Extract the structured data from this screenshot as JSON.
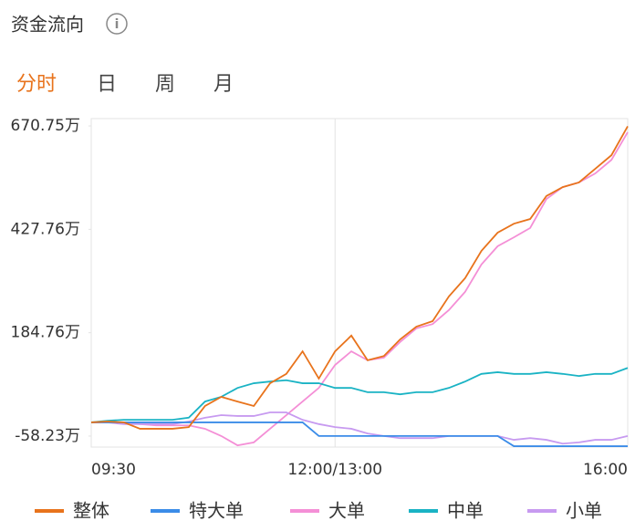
{
  "header": {
    "title": "资金流向",
    "tabs": [
      "分时",
      "日",
      "周",
      "月"
    ]
  },
  "chart_data": {
    "type": "line",
    "categories": [
      "09:30",
      null,
      null,
      null,
      null,
      null,
      null,
      null,
      null,
      null,
      null,
      null,
      null,
      null,
      null,
      "12:00/13:00",
      null,
      null,
      null,
      null,
      null,
      null,
      null,
      null,
      null,
      null,
      null,
      null,
      null,
      null,
      null,
      null,
      null,
      "16:00"
    ],
    "ylim": [
      -84,
      688
    ],
    "yticks": [
      {
        "value": 670.75,
        "label": "670.75万"
      },
      {
        "value": 427.76,
        "label": "427.76万"
      },
      {
        "value": 184.76,
        "label": "184.76万"
      },
      {
        "value": -58.23,
        "label": "-58.23万"
      }
    ],
    "grid": false,
    "series": [
      {
        "name": "整体",
        "color": "#e8731c",
        "values": [
          -26,
          -24,
          -26,
          -41,
          -41,
          -41,
          -37,
          12.5,
          34,
          23,
          12.5,
          66,
          88,
          141,
          77,
          141,
          178,
          120,
          130,
          169,
          199,
          212,
          270,
          313,
          377,
          420,
          441,
          452,
          506,
          527,
          538,
          570,
          602,
          670
        ]
      },
      {
        "name": "特大单",
        "color": "#3b8ce8",
        "values": [
          -26,
          -26,
          -26,
          -26,
          -26,
          -26,
          -26,
          -26,
          -26,
          -26,
          -26,
          -26,
          -26,
          -26,
          -58,
          -58,
          -58,
          -58,
          -58,
          -58,
          -58,
          -58,
          -58,
          -58,
          -58,
          -58,
          -82,
          -82,
          -82,
          -82,
          -82,
          -82,
          -82,
          -82
        ]
      },
      {
        "name": "大单",
        "color": "#f48fd6",
        "values": [
          -26,
          -26,
          -26,
          -30,
          -33,
          -33,
          -33,
          -41,
          -58,
          -80,
          -73,
          -41,
          -9,
          23,
          55,
          109,
          141,
          120,
          126,
          163,
          195,
          205,
          238,
          281,
          345,
          388,
          409,
          431,
          499,
          527,
          538,
          559,
          591,
          656
        ]
      },
      {
        "name": "中单",
        "color": "#1ab3c4",
        "values": [
          -26,
          -22,
          -20,
          -20,
          -20,
          -20,
          -15,
          23,
          34,
          55,
          66,
          70,
          73,
          66,
          66,
          55,
          55,
          45,
          45,
          40,
          45,
          45,
          55,
          70,
          88,
          92,
          88,
          88,
          92,
          88,
          83,
          88,
          88,
          102
        ]
      },
      {
        "name": "小单",
        "color": "#c79af0",
        "values": [
          -26,
          -26,
          -30,
          -30,
          -30,
          -30,
          -24,
          -15,
          -9,
          -11,
          -11,
          -2.5,
          -2.5,
          -20,
          -30,
          -37,
          -41,
          -52,
          -58,
          -63,
          -63,
          -63,
          -58,
          -58,
          -58,
          -58,
          -67,
          -63,
          -67,
          -76,
          -73,
          -67,
          -67,
          -58
        ]
      }
    ]
  }
}
